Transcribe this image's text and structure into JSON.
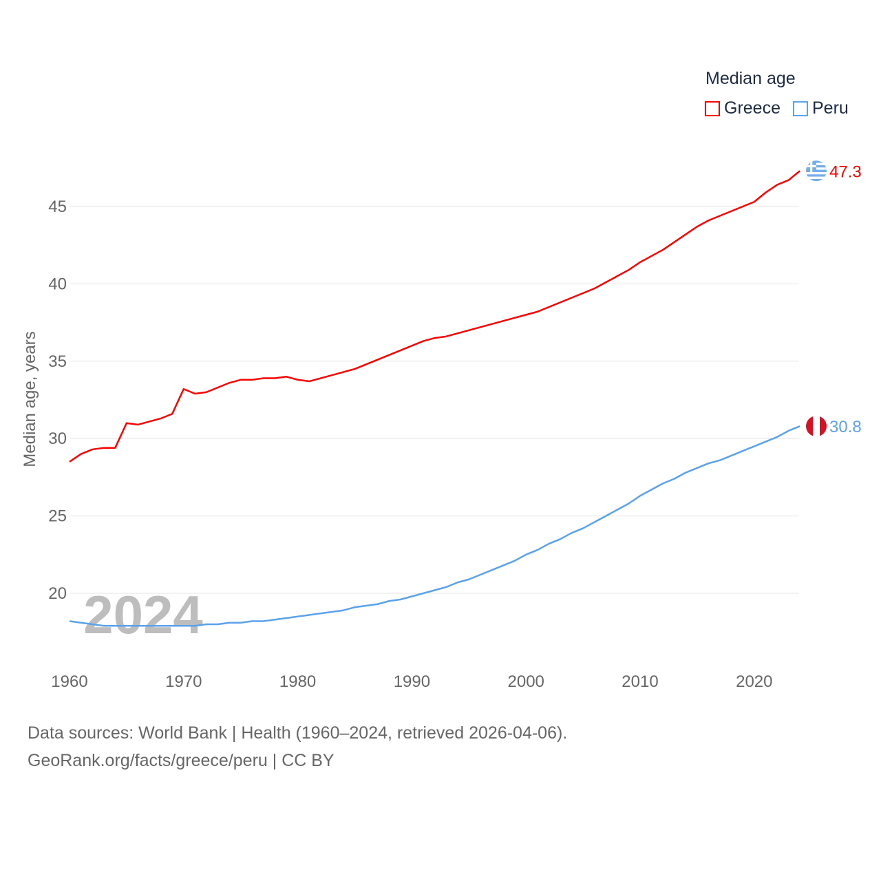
{
  "chart_data": {
    "type": "line",
    "title": "Median age",
    "ylabel": "Median age, years",
    "xlabel": "",
    "xlim": [
      1960,
      2024
    ],
    "ylim": [
      16,
      48
    ],
    "yticks": [
      20,
      25,
      30,
      35,
      40,
      45
    ],
    "xticks": [
      1960,
      1970,
      1980,
      1990,
      2000,
      2010,
      2020
    ],
    "grid": true,
    "legend_position": "top-right",
    "year_label": "2024",
    "series": [
      {
        "name": "Greece",
        "color": "#ff0000",
        "end_label": "47.3",
        "flag": "greece-flag",
        "values": [
          28.5,
          29.0,
          29.3,
          29.4,
          29.4,
          31.0,
          30.9,
          31.1,
          31.3,
          31.6,
          33.2,
          32.9,
          33.0,
          33.3,
          33.6,
          33.8,
          33.8,
          33.9,
          33.9,
          34.0,
          33.8,
          33.7,
          33.9,
          34.1,
          34.3,
          34.5,
          34.8,
          35.1,
          35.4,
          35.7,
          36.0,
          36.3,
          36.5,
          36.6,
          36.8,
          37.0,
          37.2,
          37.4,
          37.6,
          37.8,
          38.0,
          38.2,
          38.5,
          38.8,
          39.1,
          39.4,
          39.7,
          40.1,
          40.5,
          40.9,
          41.4,
          41.8,
          42.2,
          42.7,
          43.2,
          43.7,
          44.1,
          44.4,
          44.7,
          45.0,
          45.3,
          45.9,
          46.4,
          46.7,
          47.3
        ]
      },
      {
        "name": "Peru",
        "color": "#5aa2ec",
        "end_label": "30.8",
        "flag": "peru-flag",
        "values": [
          18.2,
          18.1,
          18.0,
          17.9,
          17.9,
          17.9,
          17.9,
          17.9,
          17.9,
          17.9,
          17.9,
          17.9,
          18.0,
          18.0,
          18.1,
          18.1,
          18.2,
          18.2,
          18.3,
          18.4,
          18.5,
          18.6,
          18.7,
          18.8,
          18.9,
          19.1,
          19.2,
          19.3,
          19.5,
          19.6,
          19.8,
          20.0,
          20.2,
          20.4,
          20.7,
          20.9,
          21.2,
          21.5,
          21.8,
          22.1,
          22.5,
          22.8,
          23.2,
          23.5,
          23.9,
          24.2,
          24.6,
          25.0,
          25.4,
          25.8,
          26.3,
          26.7,
          27.1,
          27.4,
          27.8,
          28.1,
          28.4,
          28.6,
          28.9,
          29.2,
          29.5,
          29.8,
          30.1,
          30.5,
          30.8
        ]
      }
    ]
  },
  "footer": {
    "line1": "Data sources: World Bank | Health (1960–2024, retrieved 2026-04-06).",
    "line2": "GeoRank.org/facts/greece/peru | CC BY"
  }
}
